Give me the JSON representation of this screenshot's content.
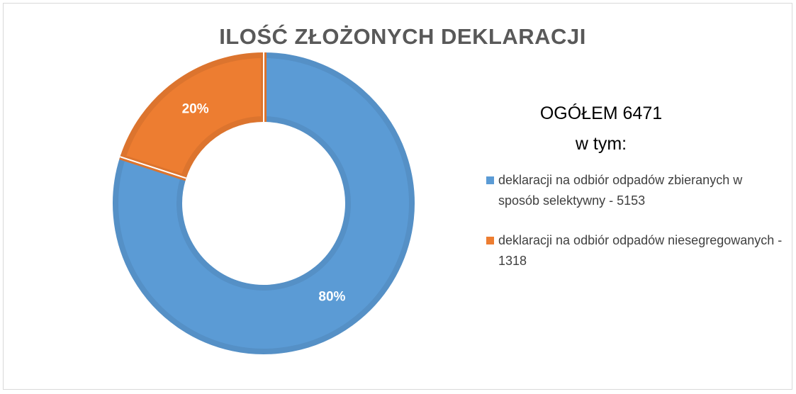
{
  "chart_data": {
    "type": "donut",
    "title": "ILOŚĆ ZŁOŻONYCH DEKLARACJI",
    "total_label": "OGÓŁEM 6471",
    "total_sublabel": "w tym:",
    "categories": [
      "deklaracji na odbiór odpadów zbieranych w sposób selektywny - 5153",
      "deklaracji na odbiór odpadów niesegregowanych - 1318"
    ],
    "values": [
      80,
      20
    ],
    "value_labels": [
      "80%",
      "20%"
    ],
    "colors": [
      "#5b9bd5",
      "#ed7d31"
    ]
  }
}
